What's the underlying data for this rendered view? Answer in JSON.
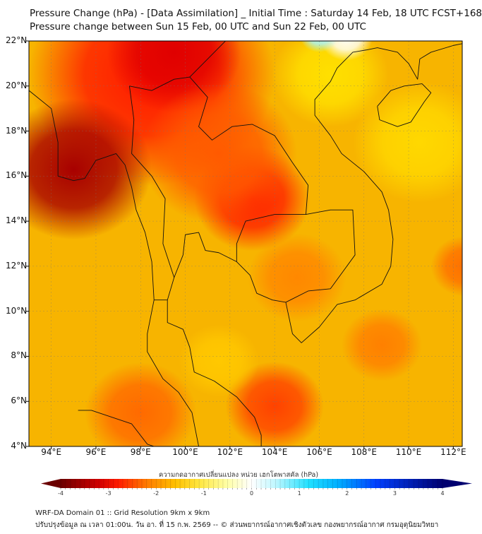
{
  "header": {
    "title": "Pressure Change (hPa) - [Data Assimilation] _ Initial Time : Saturday 14 Feb, 18 UTC FCST+168",
    "subtitle": "Pressure change between Sun 15 Feb, 00 UTC and Sun 22 Feb, 00 UTC"
  },
  "map": {
    "lat_range": [
      4,
      22
    ],
    "lon_range": [
      93,
      112.4
    ],
    "lat_labels": [
      {
        "v": 22,
        "t": "22°N"
      },
      {
        "v": 20,
        "t": "20°N"
      },
      {
        "v": 18,
        "t": "18°N"
      },
      {
        "v": 16,
        "t": "16°N"
      },
      {
        "v": 14,
        "t": "14°N"
      },
      {
        "v": 12,
        "t": "12°N"
      },
      {
        "v": 10,
        "t": "10°N"
      },
      {
        "v": 8,
        "t": "8°N"
      },
      {
        "v": 6,
        "t": "6°N"
      },
      {
        "v": 4,
        "t": "4°N"
      }
    ],
    "lon_labels": [
      {
        "v": 94,
        "t": "94°E"
      },
      {
        "v": 96,
        "t": "96°E"
      },
      {
        "v": 98,
        "t": "98°E"
      },
      {
        "v": 100,
        "t": "100°E"
      },
      {
        "v": 102,
        "t": "102°E"
      },
      {
        "v": 104,
        "t": "104°E"
      },
      {
        "v": 106,
        "t": "106°E"
      },
      {
        "v": 108,
        "t": "108°E"
      },
      {
        "v": 110,
        "t": "110°E"
      },
      {
        "v": 112,
        "t": "112°E"
      }
    ],
    "background_color": "#f7b400",
    "anomalies": [
      {
        "lon": 98.5,
        "lat": 20.5,
        "r": 5.5,
        "color": "#ff1800",
        "value": -3.0
      },
      {
        "lon": 95.0,
        "lat": 16.3,
        "r": 3.5,
        "color": "#a80000",
        "value": -3.8
      },
      {
        "lon": 99.5,
        "lat": 21.5,
        "r": 3.0,
        "color": "#e00000",
        "value": -3.4
      },
      {
        "lon": 103.0,
        "lat": 15.0,
        "r": 2.6,
        "color": "#ff2000",
        "value": -3.0
      },
      {
        "lon": 101.5,
        "lat": 17.0,
        "r": 3.5,
        "color": "#ff5a00",
        "value": -2.6
      },
      {
        "lon": 104.0,
        "lat": 5.8,
        "r": 2.2,
        "color": "#ff4200",
        "value": -2.8
      },
      {
        "lon": 98.0,
        "lat": 5.5,
        "r": 2.5,
        "color": "#ff6a00",
        "value": -2.4
      },
      {
        "lon": 108.8,
        "lat": 8.5,
        "r": 1.8,
        "color": "#ff8000",
        "value": -2.1
      },
      {
        "lon": 112.5,
        "lat": 12.0,
        "r": 1.5,
        "color": "#ff7000",
        "value": -2.2
      },
      {
        "lon": 105.0,
        "lat": 11.5,
        "r": 2.2,
        "color": "#ff8800",
        "value": -2.0
      },
      {
        "lon": 110.5,
        "lat": 17.5,
        "r": 3.0,
        "color": "#ffd800",
        "value": -1.3
      },
      {
        "lon": 106.5,
        "lat": 20.5,
        "r": 2.6,
        "color": "#ffe000",
        "value": -1.2
      },
      {
        "lon": 101.5,
        "lat": 7.8,
        "r": 1.8,
        "color": "#ffc800",
        "value": -1.5
      },
      {
        "lon": 107.2,
        "lat": 22.2,
        "r": 1.2,
        "color": "#ffffff",
        "value": 0.0
      },
      {
        "lon": 106.0,
        "lat": 22.3,
        "r": 0.9,
        "color": "#a8f4ff",
        "value": 0.6
      }
    ]
  },
  "colorbar": {
    "label": "ความกดอากาศเปลี่ยนแปลง หน่วย เฮกโตพาสคัล (hPa)",
    "min": -4,
    "max": 4,
    "ticks": [
      {
        "v": -4,
        "t": "-4"
      },
      {
        "v": -3,
        "t": "-3"
      },
      {
        "v": -2,
        "t": "-2"
      },
      {
        "v": -1,
        "t": "-1"
      },
      {
        "v": 0,
        "t": "0"
      },
      {
        "v": 1,
        "t": "1"
      },
      {
        "v": 2,
        "t": "2"
      },
      {
        "v": 3,
        "t": "3"
      },
      {
        "v": 4,
        "t": "4"
      }
    ],
    "stops": [
      {
        "v": -4,
        "c": "#6b0000"
      },
      {
        "v": -3.2,
        "c": "#d00000"
      },
      {
        "v": -2.8,
        "c": "#ff1a00"
      },
      {
        "v": -2.2,
        "c": "#ff7a00"
      },
      {
        "v": -1.6,
        "c": "#ffc000"
      },
      {
        "v": -1.1,
        "c": "#ffe640"
      },
      {
        "v": -0.5,
        "c": "#ffffa8"
      },
      {
        "v": 0,
        "c": "#ffffff"
      },
      {
        "v": 0.5,
        "c": "#bff7ff"
      },
      {
        "v": 1.2,
        "c": "#20e0ff"
      },
      {
        "v": 1.8,
        "c": "#00b0ff"
      },
      {
        "v": 2.6,
        "c": "#0040ff"
      },
      {
        "v": 4,
        "c": "#000070"
      }
    ]
  },
  "footer": {
    "line1": "WRF-DA Domain 01 :: Grid Resolution 9km x 9km",
    "line2": "ปรับปรุงข้อมูล ณ เวลา 01:00น. วัน อา. ที่ 15 ก.พ. 2569 -- © ส่วนพยากรณ์อากาศเชิงตัวเลข กองพยากรณ์อากาศ กรมอุตุนิยมวิทยา"
  }
}
